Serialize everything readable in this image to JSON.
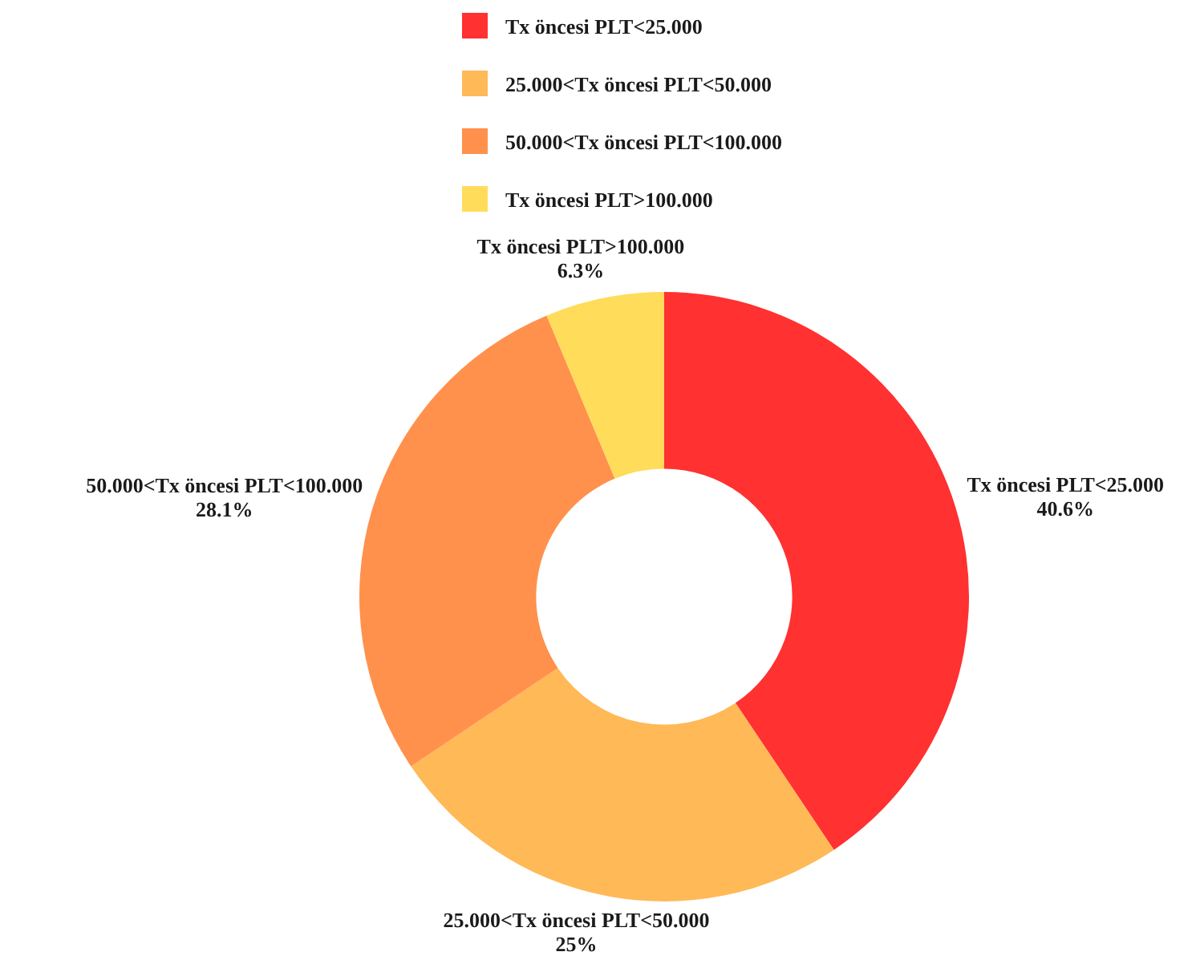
{
  "chart_data": {
    "type": "donut",
    "categories": [
      "Tx öncesi PLT<25.000",
      "25.000<Tx öncesi PLT<50.000",
      "50.000<Tx öncesi PLT<100.000",
      "Tx öncesi PLT>100.000"
    ],
    "values": [
      40.6,
      25,
      28.1,
      6.3
    ],
    "colors": [
      "#ff3131",
      "#ffb957",
      "#ff914d",
      "#ffdc5a"
    ],
    "value_labels": [
      "40.6%",
      "25%",
      "28.1%",
      "6.3%"
    ],
    "legend": "top"
  }
}
